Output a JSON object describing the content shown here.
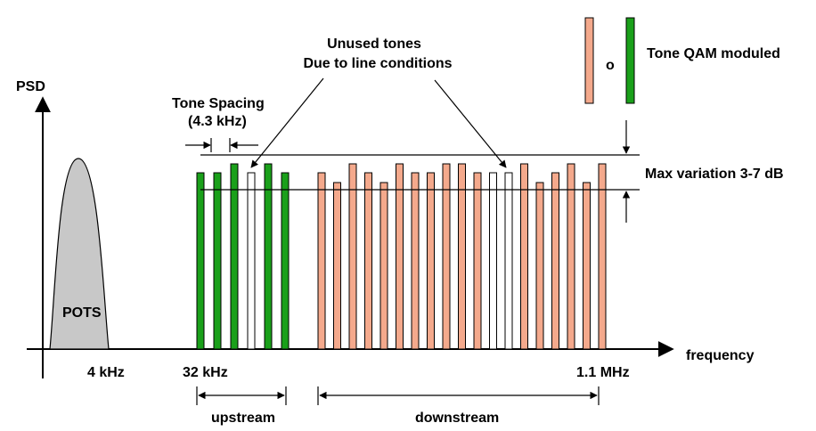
{
  "labels": {
    "psd": "PSD",
    "frequency": "frequency",
    "pots": "POTS",
    "f_4khz": "4 kHz",
    "f_32khz": "32 kHz",
    "f_1_1mhz": "1.1 MHz",
    "upstream": "upstream",
    "downstream": "downstream",
    "tone_spacing_line1": "Tone Spacing",
    "tone_spacing_line2": "(4.3 kHz)",
    "unused_line1": "Unused tones",
    "unused_line2": "Due to line conditions",
    "legend_or": "o",
    "legend_text": "Tone QAM moduled",
    "max_variation": "Max variation 3-7 dB"
  },
  "colors": {
    "upstream_tone": "#1aa01a",
    "downstream_tone": "#f4a98c",
    "unused_tone": "#ffffff",
    "pots_fill": "#c8c8c8",
    "stroke": "#000000"
  },
  "upstream_tones": [
    {
      "level": "low",
      "used": true
    },
    {
      "level": "low",
      "used": true
    },
    {
      "level": "high",
      "used": true
    },
    {
      "level": "low",
      "used": false
    },
    {
      "level": "high",
      "used": true
    },
    {
      "level": "low",
      "used": true
    }
  ],
  "downstream_tones": [
    {
      "level": "low",
      "used": true
    },
    {
      "level": "dip",
      "used": true
    },
    {
      "level": "high",
      "used": true
    },
    {
      "level": "low",
      "used": true
    },
    {
      "level": "dip",
      "used": true
    },
    {
      "level": "high",
      "used": true
    },
    {
      "level": "low",
      "used": true
    },
    {
      "level": "low",
      "used": true
    },
    {
      "level": "high",
      "used": true
    },
    {
      "level": "high",
      "used": true
    },
    {
      "level": "low",
      "used": true
    },
    {
      "level": "low",
      "used": false
    },
    {
      "level": "low",
      "used": false
    },
    {
      "level": "high",
      "used": true
    },
    {
      "level": "dip",
      "used": true
    },
    {
      "level": "low",
      "used": true
    },
    {
      "level": "high",
      "used": true
    },
    {
      "level": "dip",
      "used": true
    },
    {
      "level": "high",
      "used": true
    }
  ]
}
